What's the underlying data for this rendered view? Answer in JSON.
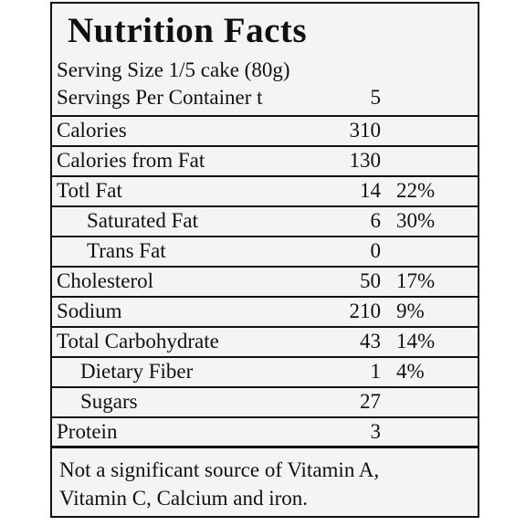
{
  "label": {
    "title": "Nutrition Facts",
    "serving_size": "Serving Size  1/5 cake (80g)",
    "servings_per_container": {
      "name": "Servings Per Container t",
      "amount": "5",
      "dv": ""
    },
    "rows": [
      {
        "name": "Calories",
        "amount": "310",
        "dv": ""
      },
      {
        "name": "Calories from Fat",
        "amount": "130",
        "dv": ""
      },
      {
        "name": "Totl Fat",
        "amount": "14",
        "dv": "22%"
      },
      {
        "name": "Saturated Fat",
        "amount": "6",
        "dv": "30%"
      },
      {
        "name": "Trans Fat",
        "amount": "0",
        "dv": ""
      },
      {
        "name": "Cholesterol",
        "amount": "50",
        "dv": "17%"
      },
      {
        "name": "Sodium",
        "amount": "210",
        "dv": "9%"
      },
      {
        "name": "Total Carbohydrate",
        "amount": "43",
        "dv": "14%"
      },
      {
        "name": "Dietary Fiber",
        "amount": "1",
        "dv": "4%"
      },
      {
        "name": "Sugars",
        "amount": "27",
        "dv": ""
      },
      {
        "name": "Protein",
        "amount": "3",
        "dv": ""
      }
    ],
    "footer_line1": "Not a significant source of Vitamin A,",
    "footer_line2": "Vitamin C, Calcium and iron."
  }
}
